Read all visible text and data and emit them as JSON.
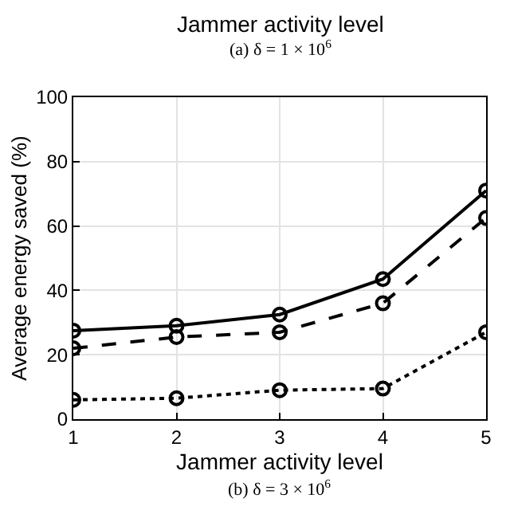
{
  "chart_data": {
    "type": "line",
    "x": [
      1,
      2,
      3,
      4,
      5
    ],
    "series": [
      {
        "color": "#000000",
        "line_style": "solid",
        "values": [
          27.5,
          29,
          32.5,
          43.5,
          71
        ]
      },
      {
        "color": "#000000",
        "line_style": "dashed",
        "values": [
          22,
          25.5,
          27,
          36,
          62.5
        ]
      },
      {
        "color": "#000000",
        "line_style": "dotted",
        "values": [
          6,
          6.5,
          9,
          9.5,
          27
        ]
      }
    ],
    "xlabel": "Jammer activity level",
    "ylabel": "Average energy saved (%)",
    "annotations": [
      "Jammer activity level",
      "(a) δ = 1 × 10$^{6}$",
      "(b) δ = 3 × 10$^{6}$"
    ],
    "xlim": [
      1,
      5
    ],
    "xticks": [
      1,
      2,
      3,
      4,
      5
    ],
    "ylim": [
      0,
      100
    ],
    "yticks": [
      0,
      20,
      40,
      60,
      80,
      100
    ],
    "grid": true,
    "marker": "circle"
  }
}
